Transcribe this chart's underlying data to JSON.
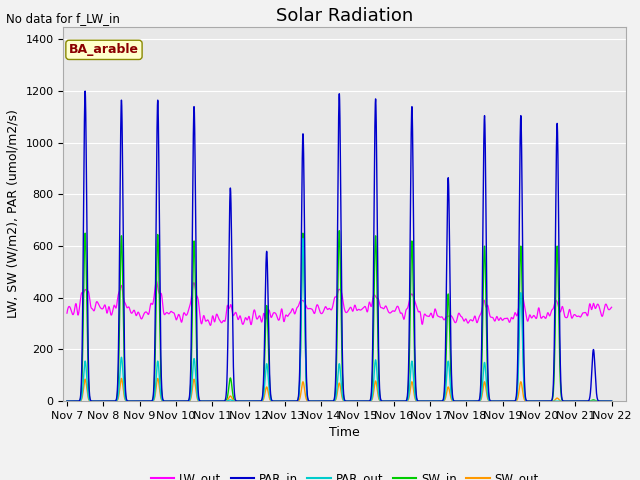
{
  "title": "Solar Radiation",
  "top_left_text": "No data for f_LW_in",
  "annotation_text": "BA_arable",
  "xlabel": "Time",
  "ylabel": "LW, SW (W/m2), PAR (umol/m2/s)",
  "ylim": [
    0,
    1450
  ],
  "xtick_labels": [
    "Nov 7",
    "Nov 8",
    "Nov 9",
    "Nov 10",
    "Nov 11",
    "Nov 12",
    "Nov 13",
    "Nov 14",
    "Nov 15",
    "Nov 16",
    "Nov 17",
    "Nov 18",
    "Nov 19",
    "Nov 20",
    "Nov 21",
    "Nov 22"
  ],
  "ytick_labels": [
    0,
    200,
    400,
    600,
    800,
    1000,
    1200,
    1400
  ],
  "colors": {
    "LW_out": "#ff00ff",
    "PAR_in": "#0000cc",
    "PAR_out": "#00cccc",
    "SW_in": "#00cc00",
    "SW_out": "#ff9900"
  },
  "background_color": "#e8e8e8",
  "grid_color": "#ffffff",
  "title_fontsize": 13,
  "label_fontsize": 9,
  "tick_fontsize": 8
}
